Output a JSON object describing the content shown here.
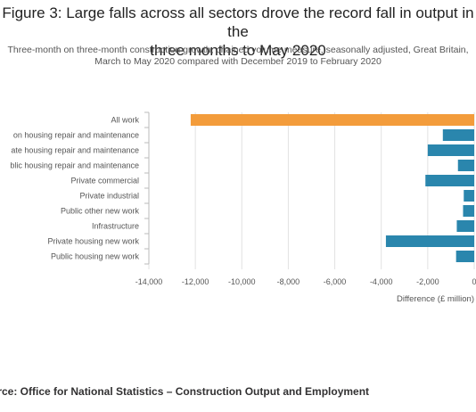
{
  "header": {
    "title_line1": "Figure 3: Large falls across all sectors drove the record fall in output in the",
    "title_line2": "three months to May 2020",
    "subtitle_line1": "Three-month on three-month construction growth, chained volume measure, seasonally adjusted, Great Britain,",
    "subtitle_line2": "March to May 2020 compared with December 2019 to February 2020"
  },
  "source": "urce: Office for National Statistics – Construction Output and Employment",
  "chart_data": {
    "type": "bar",
    "orientation": "horizontal",
    "categories": [
      "All work",
      "on housing repair and maintenance",
      "ate housing repair and maintenance",
      "blic housing repair and maintenance",
      "Private commercial",
      "Private industrial",
      "Public other new work",
      "Infrastructure",
      "Private housing new work",
      "Public housing new work"
    ],
    "values": [
      -12200,
      -1350,
      -2000,
      -700,
      -2100,
      -450,
      -480,
      -750,
      -3800,
      -780
    ],
    "highlight_index": 0,
    "colors": {
      "highlight": "#f39c3b",
      "bar": "#2a86ad",
      "grid": "#e2e2e2",
      "axis": "#bbbbbb"
    },
    "xlim": [
      -14000,
      0
    ],
    "xticks": [
      -14000,
      -12000,
      -10000,
      -8000,
      -6000,
      -4000,
      -2000,
      0
    ],
    "xtick_labels": [
      "-14,000",
      "-12,000",
      "-10,000",
      "-8,000",
      "-6,000",
      "-4,000",
      "-2,000",
      "0"
    ],
    "xlabel": "Difference (£ million)",
    "ylabel": "",
    "grid": true,
    "legend": "none"
  }
}
